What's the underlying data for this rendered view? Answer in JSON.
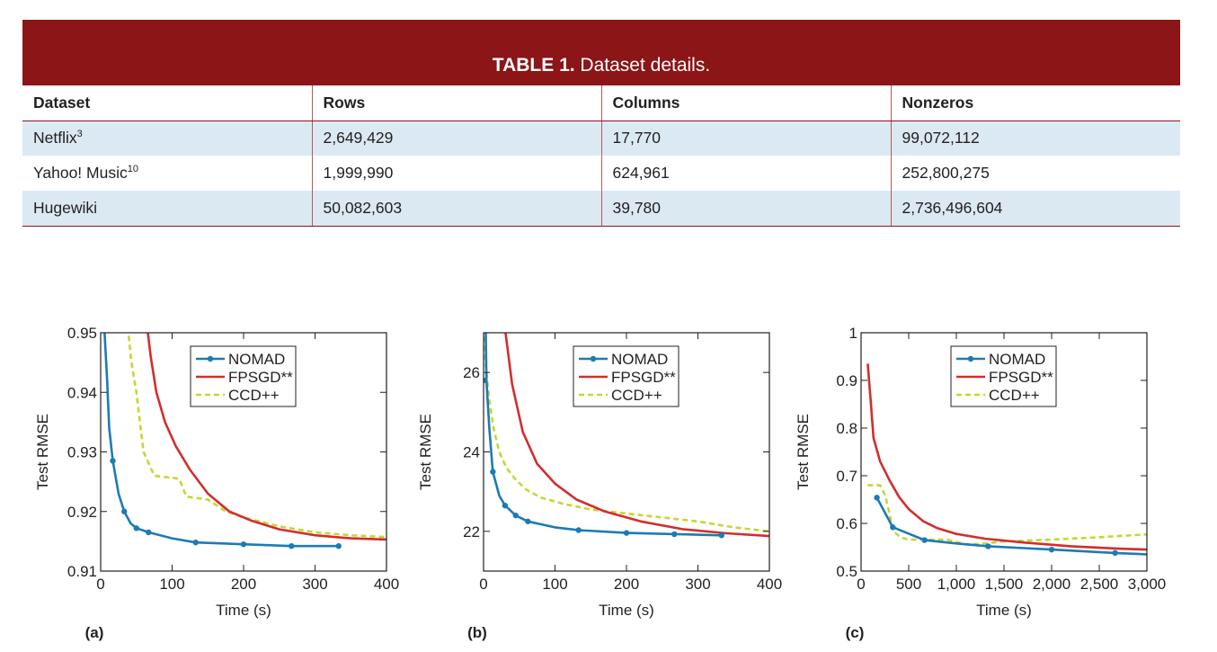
{
  "table": {
    "title_bold": "TABLE 1.",
    "title_rest": " Dataset details.",
    "headers": [
      "Dataset",
      "Rows",
      "Columns",
      "Nonzeros"
    ],
    "rows": [
      {
        "dataset": "Netflix",
        "sup": "3",
        "rows": "2,649,429",
        "columns": "17,770",
        "nonzeros": "99,072,112"
      },
      {
        "dataset": "Yahoo! Music",
        "sup": "10",
        "rows": "1,999,990",
        "columns": "624,961",
        "nonzeros": "252,800,275"
      },
      {
        "dataset": "Hugewiki",
        "sup": "",
        "rows": "50,082,603",
        "columns": "39,780",
        "nonzeros": "2,736,496,604"
      }
    ]
  },
  "colors": {
    "nomad": "#1c7bb5",
    "fpsgd": "#d12e2e",
    "ccd": "#c7d631",
    "header": "#8b1517",
    "shade": "#dbe9f3"
  },
  "chart_data": [
    {
      "type": "line",
      "panel_label": "(a)",
      "xlabel": "Time (s)",
      "ylabel": "Test RMSE",
      "xlim": [
        0,
        400
      ],
      "ylim": [
        0.91,
        0.95
      ],
      "xticks": [
        0,
        100,
        200,
        300,
        400
      ],
      "xtick_labels": [
        "0",
        "100",
        "200",
        "300",
        "400"
      ],
      "yticks": [
        0.91,
        0.92,
        0.93,
        0.94,
        0.95
      ],
      "ytick_labels": [
        "0.91",
        "0.92",
        "0.93",
        "0.94",
        "0.95"
      ],
      "legend_position": "top-right",
      "grid": false,
      "series": [
        {
          "name": "NOMAD",
          "style": "solid-markers",
          "points": [
            [
              5,
              0.951
            ],
            [
              9,
              0.942
            ],
            [
              12,
              0.934
            ],
            [
              17,
              0.9285
            ],
            [
              25,
              0.923
            ],
            [
              33,
              0.92
            ],
            [
              42,
              0.918
            ],
            [
              50,
              0.9172
            ],
            [
              67,
              0.9165
            ],
            [
              100,
              0.9155
            ],
            [
              133,
              0.9148
            ],
            [
              200,
              0.9145
            ],
            [
              267,
              0.9142
            ],
            [
              333,
              0.9142
            ]
          ],
          "markers": [
            [
              17,
              0.9285
            ],
            [
              33,
              0.92
            ],
            [
              50,
              0.9172
            ],
            [
              67,
              0.9165
            ],
            [
              133,
              0.9148
            ],
            [
              200,
              0.9145
            ],
            [
              267,
              0.9142
            ],
            [
              333,
              0.9142
            ]
          ]
        },
        {
          "name": "FPSGD**",
          "style": "solid",
          "points": [
            [
              65,
              0.951
            ],
            [
              70,
              0.946
            ],
            [
              78,
              0.94
            ],
            [
              90,
              0.935
            ],
            [
              105,
              0.931
            ],
            [
              125,
              0.927
            ],
            [
              150,
              0.923
            ],
            [
              180,
              0.92
            ],
            [
              210,
              0.9185
            ],
            [
              250,
              0.917
            ],
            [
              300,
              0.916
            ],
            [
              350,
              0.9155
            ],
            [
              400,
              0.9153
            ]
          ]
        },
        {
          "name": "CCD++",
          "style": "dashed",
          "points": [
            [
              38,
              0.951
            ],
            [
              43,
              0.945
            ],
            [
              50,
              0.94
            ],
            [
              55,
              0.935
            ],
            [
              60,
              0.93
            ],
            [
              75,
              0.926
            ],
            [
              110,
              0.9255
            ],
            [
              120,
              0.9225
            ],
            [
              150,
              0.922
            ],
            [
              175,
              0.92
            ],
            [
              200,
              0.919
            ],
            [
              250,
              0.9175
            ],
            [
              300,
              0.9165
            ],
            [
              350,
              0.916
            ],
            [
              400,
              0.9157
            ]
          ]
        }
      ]
    },
    {
      "type": "line",
      "panel_label": "(b)",
      "xlabel": "Time (s)",
      "ylabel": "Test RMSE",
      "xlim": [
        0,
        400
      ],
      "ylim": [
        21,
        27
      ],
      "xticks": [
        0,
        100,
        200,
        300,
        400
      ],
      "xtick_labels": [
        "0",
        "100",
        "200",
        "300",
        "400"
      ],
      "yticks": [
        22,
        24,
        26
      ],
      "ytick_labels": [
        "22",
        "24",
        "26"
      ],
      "legend_position": "top-right",
      "grid": false,
      "series": [
        {
          "name": "NOMAD",
          "style": "solid-markers",
          "points": [
            [
              3,
              27.1
            ],
            [
              4,
              25.8
            ],
            [
              8,
              24.6
            ],
            [
              13,
              23.5
            ],
            [
              22,
              22.9
            ],
            [
              30,
              22.65
            ],
            [
              45,
              22.4
            ],
            [
              62,
              22.25
            ],
            [
              100,
              22.1
            ],
            [
              133,
              22.03
            ],
            [
              200,
              21.96
            ],
            [
              267,
              21.93
            ],
            [
              333,
              21.9
            ]
          ],
          "markers": [
            [
              0,
              25.8
            ],
            [
              13,
              23.5
            ],
            [
              30,
              22.65
            ],
            [
              45,
              22.4
            ],
            [
              62,
              22.25
            ],
            [
              133,
              22.03
            ],
            [
              200,
              21.96
            ],
            [
              267,
              21.93
            ],
            [
              333,
              21.9
            ]
          ]
        },
        {
          "name": "FPSGD**",
          "style": "solid",
          "points": [
            [
              30,
              27.1
            ],
            [
              40,
              25.7
            ],
            [
              55,
              24.5
            ],
            [
              75,
              23.7
            ],
            [
              100,
              23.2
            ],
            [
              130,
              22.8
            ],
            [
              170,
              22.5
            ],
            [
              220,
              22.25
            ],
            [
              280,
              22.05
            ],
            [
              340,
              21.95
            ],
            [
              400,
              21.88
            ]
          ]
        },
        {
          "name": "CCD++",
          "style": "dashed",
          "points": [
            [
              0,
              26.9
            ],
            [
              3,
              26.2
            ],
            [
              8,
              25.3
            ],
            [
              14,
              24.6
            ],
            [
              22,
              24.0
            ],
            [
              32,
              23.6
            ],
            [
              45,
              23.3
            ],
            [
              60,
              23.05
            ],
            [
              80,
              22.85
            ],
            [
              110,
              22.7
            ],
            [
              150,
              22.55
            ],
            [
              200,
              22.45
            ],
            [
              250,
              22.35
            ],
            [
              300,
              22.25
            ],
            [
              350,
              22.1
            ],
            [
              400,
              22.0
            ]
          ]
        }
      ]
    },
    {
      "type": "line",
      "panel_label": "(c)",
      "xlabel": "Time (s)",
      "ylabel": "Test RMSE",
      "xlim": [
        0,
        3000
      ],
      "ylim": [
        0.5,
        1.0
      ],
      "xticks": [
        0,
        500,
        1000,
        1500,
        2000,
        2500,
        3000
      ],
      "xtick_labels": [
        "0",
        "500",
        "1,000",
        "1,500",
        "2,000",
        "2,500",
        "3,000"
      ],
      "yticks": [
        0.5,
        0.6,
        0.7,
        0.8,
        0.9,
        1.0
      ],
      "ytick_labels": [
        "0.5",
        "0.6",
        "0.7",
        "0.8",
        "0.9",
        "1"
      ],
      "legend_position": "top-right",
      "grid": false,
      "series": [
        {
          "name": "NOMAD",
          "style": "solid-markers",
          "points": [
            [
              166,
              0.654
            ],
            [
              333,
              0.592
            ],
            [
              666,
              0.565
            ],
            [
              1000,
              0.558
            ],
            [
              1333,
              0.552
            ],
            [
              2000,
              0.545
            ],
            [
              2666,
              0.538
            ],
            [
              3000,
              0.535
            ]
          ],
          "markers": [
            [
              166,
              0.654
            ],
            [
              333,
              0.592
            ],
            [
              666,
              0.565
            ],
            [
              1333,
              0.552
            ],
            [
              2000,
              0.545
            ],
            [
              2666,
              0.538
            ]
          ]
        },
        {
          "name": "FPSGD**",
          "style": "solid",
          "points": [
            [
              70,
              0.935
            ],
            [
              100,
              0.86
            ],
            [
              130,
              0.78
            ],
            [
              200,
              0.73
            ],
            [
              300,
              0.69
            ],
            [
              400,
              0.655
            ],
            [
              500,
              0.63
            ],
            [
              650,
              0.605
            ],
            [
              800,
              0.59
            ],
            [
              1000,
              0.578
            ],
            [
              1300,
              0.568
            ],
            [
              1700,
              0.56
            ],
            [
              2200,
              0.552
            ],
            [
              2700,
              0.547
            ],
            [
              3000,
              0.545
            ]
          ]
        },
        {
          "name": "CCD++",
          "style": "dashed",
          "points": [
            [
              70,
              0.68
            ],
            [
              200,
              0.68
            ],
            [
              250,
              0.66
            ],
            [
              300,
              0.62
            ],
            [
              330,
              0.585
            ],
            [
              420,
              0.57
            ],
            [
              500,
              0.566
            ],
            [
              700,
              0.566
            ],
            [
              900,
              0.566
            ],
            [
              1100,
              0.556
            ],
            [
              1300,
              0.558
            ],
            [
              1500,
              0.562
            ],
            [
              2000,
              0.566
            ],
            [
              2500,
              0.571
            ],
            [
              3000,
              0.577
            ]
          ]
        }
      ]
    }
  ]
}
